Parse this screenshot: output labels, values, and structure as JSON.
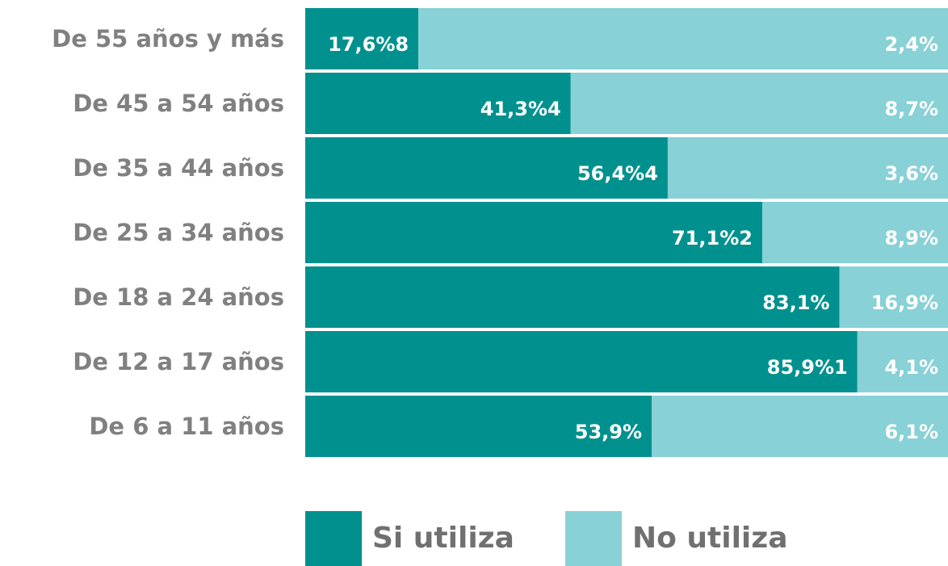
{
  "chart_data": {
    "type": "stacked-bar-horizontal",
    "categories": [
      "De 55 años y más",
      "De 45 a 54 años",
      "De 35 a 44 años",
      "De 25 a 34 años",
      "De 18 a 24 años",
      "De 12 a 17 años",
      "De 6 a 11 años"
    ],
    "series": [
      {
        "name": "Si utiliza",
        "color": "#00918f",
        "values": [
          17.6,
          41.3,
          56.4,
          71.1,
          83.1,
          85.9,
          53.9
        ],
        "value_labels": [
          "17,6%8",
          "41,3%4",
          "56,4%4",
          "71,1%2",
          "83,1%",
          "85,9%1",
          "53,9%"
        ]
      },
      {
        "name": "No utiliza",
        "color": "#88d1d6",
        "values": [
          82.4,
          58.7,
          43.6,
          28.9,
          16.9,
          14.1,
          46.1
        ],
        "value_labels": [
          "2,4%",
          "8,7%",
          "3,6%",
          "8,9%",
          "16,9%",
          "4,1%",
          "6,1%"
        ]
      }
    ]
  }
}
